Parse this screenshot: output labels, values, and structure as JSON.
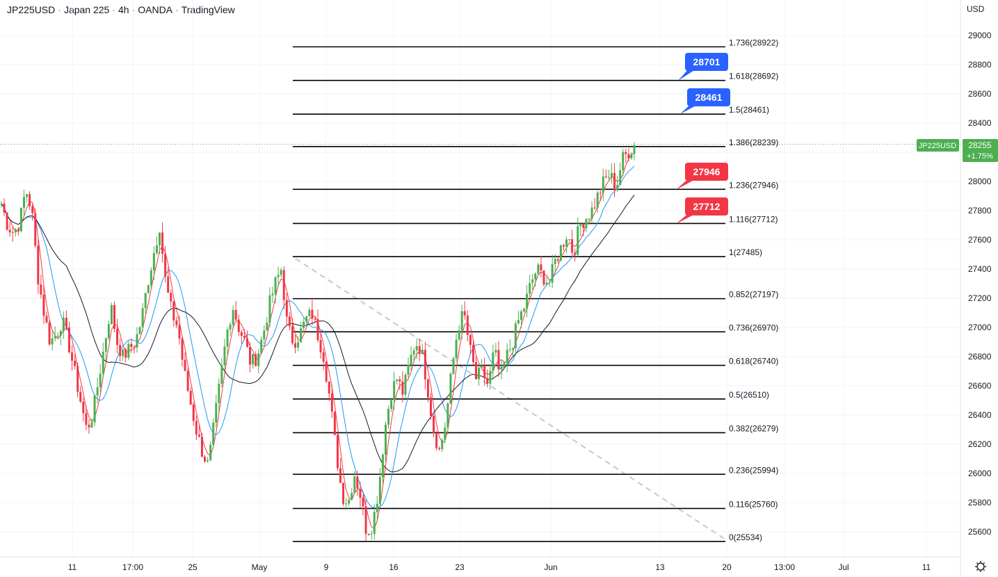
{
  "header": {
    "symbol": "JP225USD",
    "name": "Japan 225",
    "interval": "4h",
    "broker": "OANDA",
    "platform": "TradingView"
  },
  "currency": "USD",
  "current_price": {
    "symbol_badge": "JP225USD",
    "price": "28255",
    "change": "+1.75%",
    "color": "#4caf50"
  },
  "colors": {
    "up": "#4caf50",
    "down": "#f23645",
    "ma_fast": "#f23645",
    "ma_mid": "#2196f3",
    "ma_slow": "#131722",
    "fib": "#000000",
    "callout_blue": "#2962ff",
    "callout_red": "#f23645"
  },
  "chart_data": {
    "type": "candlestick",
    "y_axis": {
      "range": [
        25430,
        29130
      ],
      "ticks": [
        25600,
        25800,
        26000,
        26200,
        26400,
        26600,
        26800,
        27000,
        27200,
        27400,
        27600,
        27800,
        28000,
        28200,
        28400,
        28600,
        28800,
        29000
      ]
    },
    "x_axis": {
      "ticks": [
        "11",
        "17:00",
        "25",
        "May",
        "9",
        "16",
        "23",
        "Jun",
        "13",
        "20",
        "13:00",
        "Jul",
        "11"
      ]
    },
    "fibonacci": [
      {
        "ratio": "0",
        "price": 25534
      },
      {
        "ratio": "0.116",
        "price": 25760
      },
      {
        "ratio": "0.236",
        "price": 25994
      },
      {
        "ratio": "0.382",
        "price": 26279
      },
      {
        "ratio": "0.5",
        "price": 26510
      },
      {
        "ratio": "0.618",
        "price": 26740
      },
      {
        "ratio": "0.736",
        "price": 26970
      },
      {
        "ratio": "0.852",
        "price": 27197
      },
      {
        "ratio": "1",
        "price": 27485
      },
      {
        "ratio": "1.116",
        "price": 27712
      },
      {
        "ratio": "1.236",
        "price": 27946
      },
      {
        "ratio": "1.386",
        "price": 28239
      },
      {
        "ratio": "1.5",
        "price": 28461
      },
      {
        "ratio": "1.618",
        "price": 28692
      },
      {
        "ratio": "1.736",
        "price": 28922
      }
    ],
    "callouts": [
      {
        "text": "28701",
        "color": "blue"
      },
      {
        "text": "28461",
        "color": "blue"
      },
      {
        "text": "27946",
        "color": "red"
      },
      {
        "text": "27712",
        "color": "red"
      }
    ],
    "close_path": [
      27850,
      27700,
      27650,
      27720,
      27950,
      27800,
      27350,
      27100,
      26900,
      26950,
      27050,
      26900,
      26700,
      26500,
      26300,
      26400,
      26650,
      26900,
      27150,
      26900,
      26800,
      26850,
      26900,
      27050,
      27300,
      27500,
      27700,
      27300,
      27100,
      27000,
      26700,
      26500,
      26300,
      26150,
      26050,
      26350,
      26650,
      26950,
      27150,
      27000,
      26900,
      26750,
      26800,
      26950,
      27150,
      27300,
      27400,
      27000,
      26900,
      26950,
      27050,
      27100,
      26950,
      26800,
      26500,
      26150,
      25850,
      25800,
      26000,
      25850,
      25600,
      25650,
      25900,
      26300,
      26550,
      26650,
      26550,
      26750,
      26900,
      26850,
      26600,
      26300,
      26150,
      26350,
      26700,
      27000,
      27100,
      26850,
      26650,
      26700,
      26600,
      26850,
      26650,
      26800,
      26900,
      27050,
      27150,
      27300,
      27400,
      27350,
      27300,
      27450,
      27550,
      27650,
      27500,
      27700,
      27750,
      27800,
      27900,
      28000,
      28050,
      27950,
      28150,
      28200,
      28250
    ]
  }
}
